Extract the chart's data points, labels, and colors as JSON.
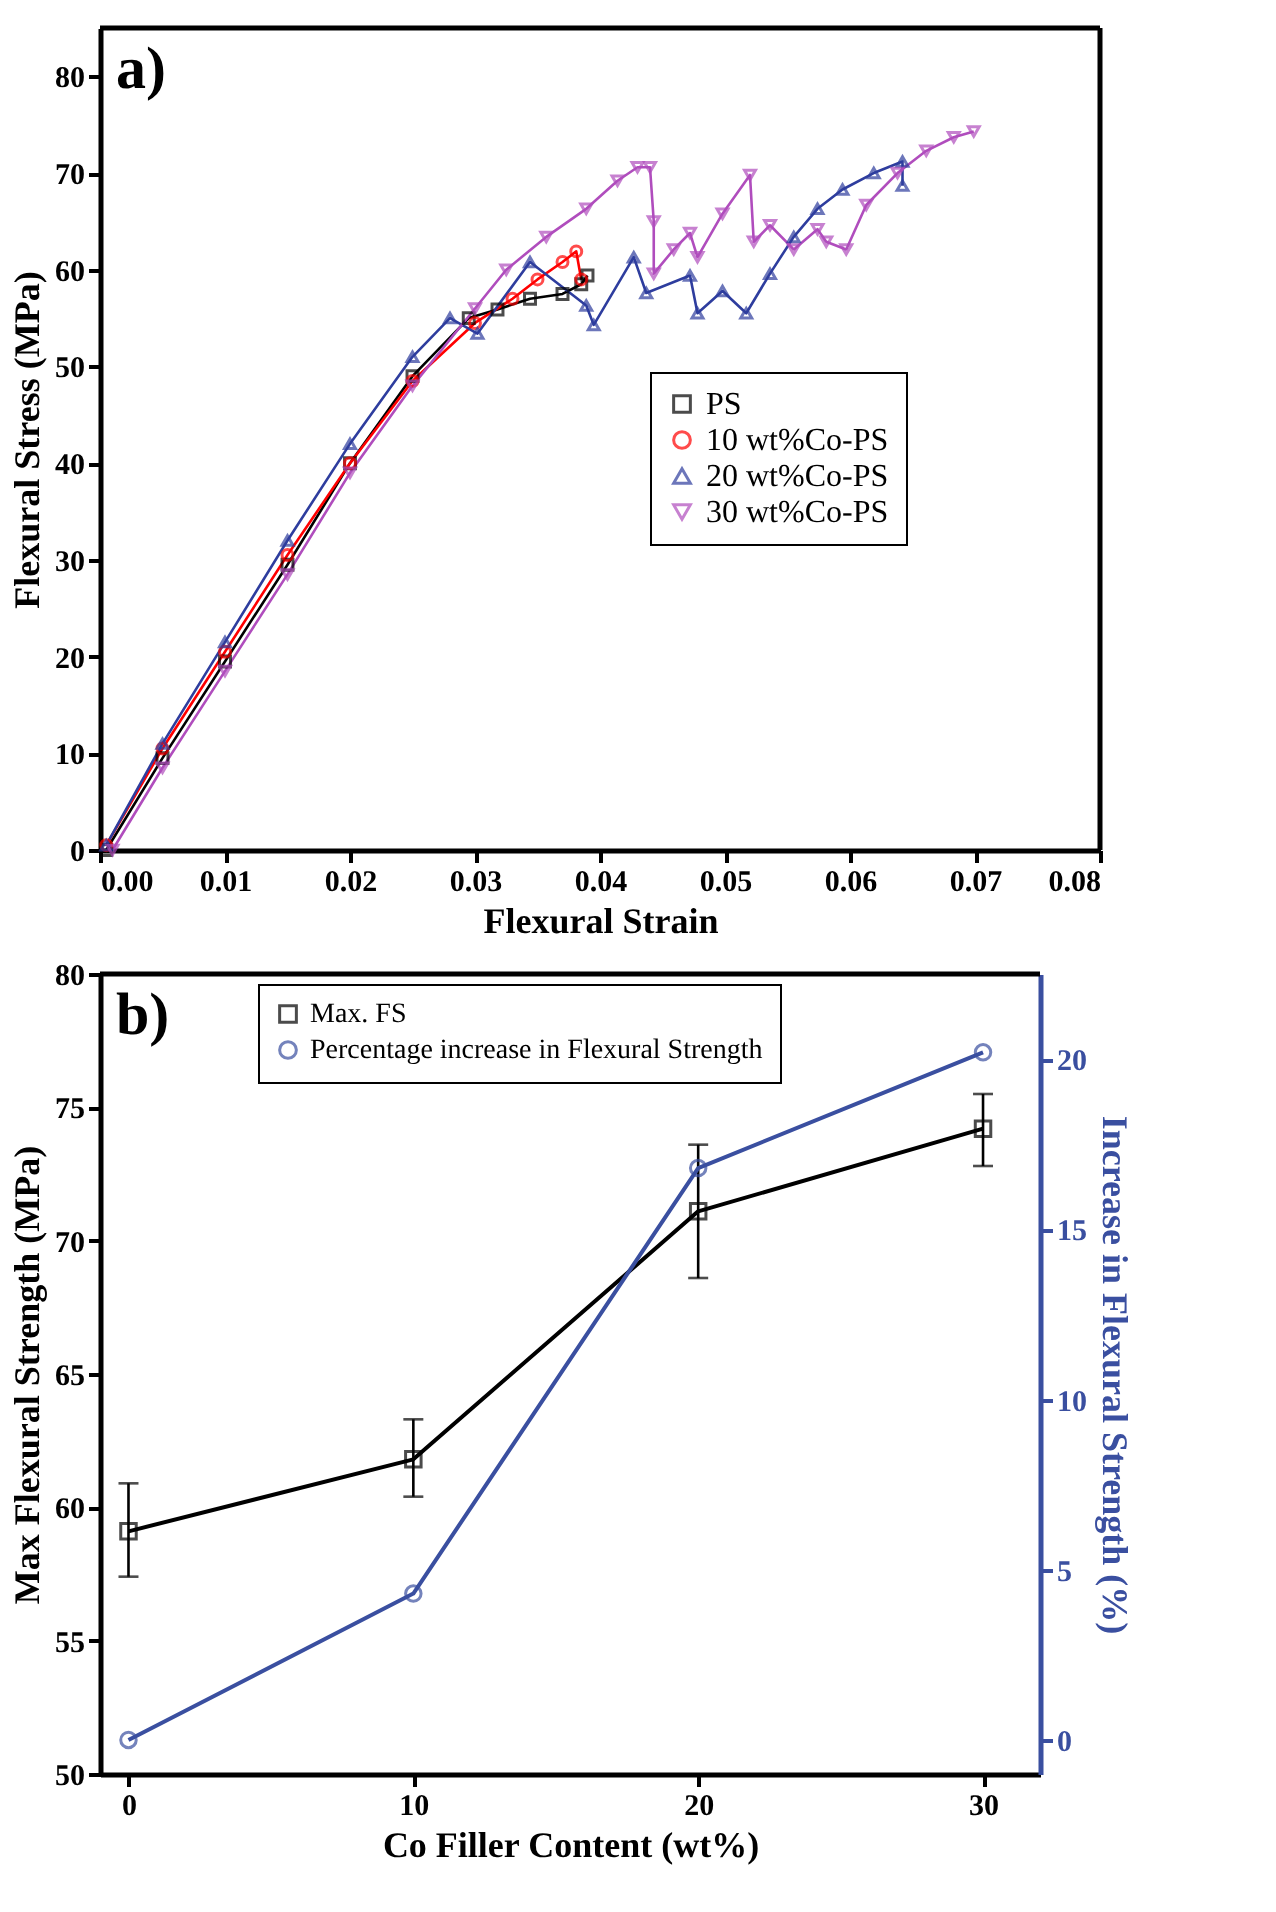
{
  "chart_data": [
    {
      "type": "line",
      "xlabel": "Flexural Strain",
      "ylabel": "Flexural Stress (MPa)",
      "xlim": [
        0,
        0.08
      ],
      "ylim": [
        0,
        85
      ],
      "xticks": [
        {
          "value": 0,
          "label": "0.00"
        },
        {
          "value": 0.01,
          "label": "0.01"
        },
        {
          "value": 0.02,
          "label": "0.02"
        },
        {
          "value": 0.03,
          "label": "0.03"
        },
        {
          "value": 0.04,
          "label": "0.04"
        },
        {
          "value": 0.05,
          "label": "0.05"
        },
        {
          "value": 0.06,
          "label": "0.06"
        },
        {
          "value": 0.07,
          "label": "0.07"
        },
        {
          "value": 0.08,
          "label": "0.08"
        }
      ],
      "yticks": [
        0,
        10,
        20,
        30,
        40,
        50,
        60,
        70,
        80
      ],
      "grid": false,
      "legend": "right",
      "annotations": [
        "a)"
      ],
      "series": [
        {
          "name": "PS",
          "color": "#000000",
          "marker": "square",
          "x": [
            0.0005,
            0.005,
            0.01,
            0.015,
            0.02,
            0.025,
            0.0295,
            0.0318,
            0.0344,
            0.037,
            0.0385,
            0.039
          ],
          "values": [
            0,
            9.5,
            19.5,
            29.5,
            40,
            49,
            55,
            55.9,
            57,
            57.5,
            58.5,
            59.4
          ]
        },
        {
          "name": "10 wt%Co-PS",
          "color": "#ff0000",
          "marker": "circle",
          "x": [
            0.0005,
            0.005,
            0.01,
            0.015,
            0.02,
            0.025,
            0.03,
            0.033,
            0.035,
            0.037,
            0.0381,
            0.0385
          ],
          "values": [
            0.5,
            10.5,
            20.5,
            30.5,
            40,
            48.5,
            54.5,
            57,
            59,
            60.8,
            61.9,
            59
          ]
        },
        {
          "name": "20 wt%Co-PS",
          "color": "#2e3d9e",
          "marker": "triangle",
          "x": [
            0.0005,
            0.005,
            0.01,
            0.015,
            0.02,
            0.025,
            0.028,
            0.0302,
            0.0344,
            0.0389,
            0.0395,
            0.0427,
            0.0437,
            0.0472,
            0.0478,
            0.0498,
            0.0517,
            0.0536,
            0.0555,
            0.0574,
            0.0594,
            0.0619,
            0.0642,
            0.0642
          ],
          "values": [
            0.5,
            11,
            21.5,
            32,
            42,
            51,
            55,
            53.4,
            60.8,
            56.3,
            54.3,
            61.3,
            57.6,
            59.4,
            55.5,
            57.8,
            55.5,
            59.6,
            63.4,
            66.3,
            68.3,
            70,
            71.2,
            68.7
          ]
        },
        {
          "name": "30 wt%Co-PS",
          "color": "#b04dbd",
          "marker": "triangle-down",
          "x": [
            0.001,
            0.005,
            0.01,
            0.015,
            0.02,
            0.025,
            0.03,
            0.0325,
            0.0357,
            0.0389,
            0.0414,
            0.043,
            0.044,
            0.0443,
            0.0443,
            0.0459,
            0.0472,
            0.0478,
            0.0498,
            0.052,
            0.0523,
            0.0536,
            0.0555,
            0.0574,
            0.0581,
            0.0597,
            0.0613,
            0.0638,
            0.0661,
            0.0683,
            0.0699
          ],
          "values": [
            0,
            8.5,
            18.5,
            28.5,
            39,
            48,
            56,
            60,
            63.4,
            66.3,
            69.2,
            70.6,
            70.6,
            65,
            59.6,
            62.1,
            63.8,
            61.3,
            65.8,
            69.8,
            62.9,
            64.6,
            62.1,
            64.2,
            62.9,
            62.1,
            66.7,
            70,
            72.3,
            73.7,
            74.3
          ]
        }
      ]
    },
    {
      "type": "line",
      "xlabel": "Co Filler Content (wt%)",
      "ylabel": "Max Flexural Strength (MPa)",
      "y2label": "Increase in Flexural Strength (%)",
      "x": [
        0,
        10,
        20,
        30
      ],
      "xlim": [
        -1,
        32
      ],
      "xticks": [
        0,
        10,
        20,
        30
      ],
      "ylim": [
        50,
        80
      ],
      "yticks": [
        50,
        55,
        60,
        65,
        70,
        75,
        80
      ],
      "y2lim": [
        -1,
        22.5
      ],
      "y2ticks": [
        0,
        5,
        10,
        15,
        20
      ],
      "grid": false,
      "legend": "top",
      "annotations": [
        "b)"
      ],
      "series": [
        {
          "name": "Max. FS",
          "color": "#000000",
          "marker": "square",
          "values": [
            59.1,
            61.8,
            71.1,
            74.2
          ],
          "errors": [
            [
              57.4,
              60.9
            ],
            [
              60.4,
              63.3
            ],
            [
              68.6,
              73.6
            ],
            [
              72.8,
              75.5
            ]
          ]
        },
        {
          "name": "Percentage increase in Flexural Strength",
          "color": "#3a4fa0",
          "marker": "circle",
          "axis": "y2",
          "values": [
            0,
            4.3,
            16.8,
            20.2
          ]
        }
      ]
    }
  ]
}
